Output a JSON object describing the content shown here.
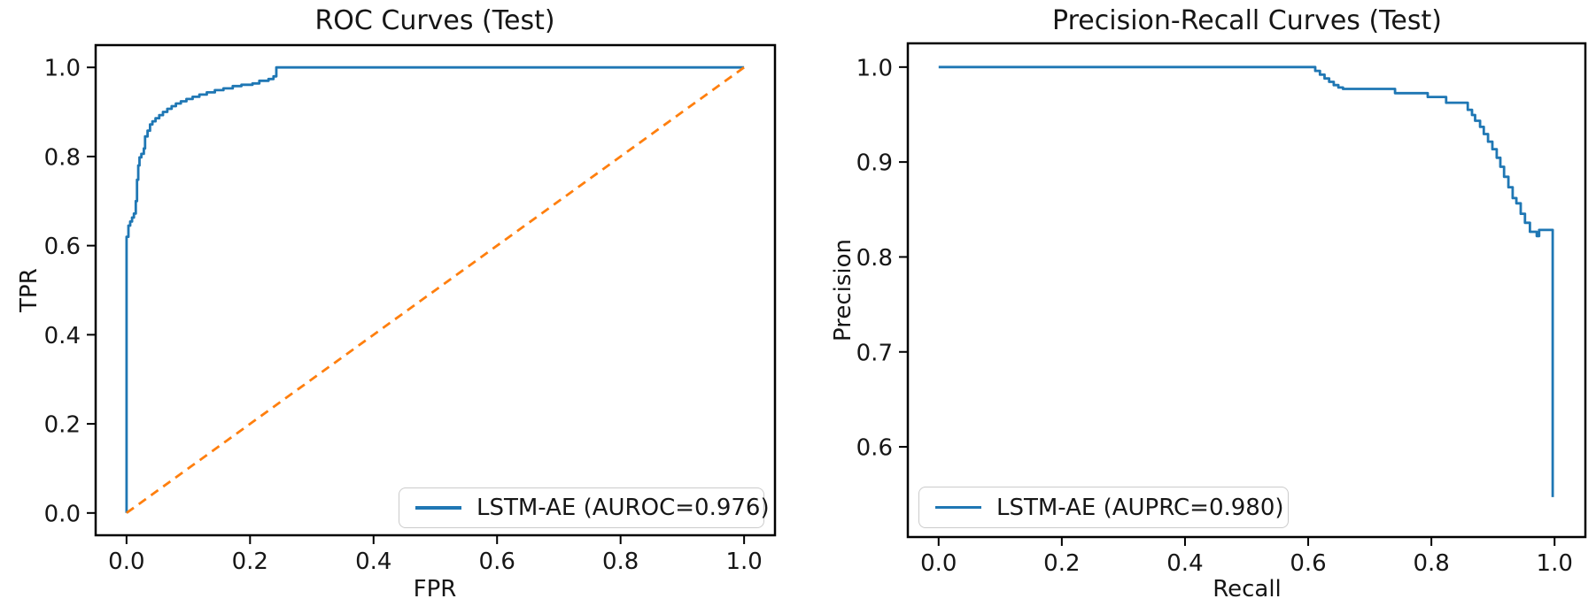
{
  "figure": {
    "background": "#ffffff",
    "text_color": "#161616",
    "spine_color": "#000000"
  },
  "chart_data": [
    {
      "type": "line",
      "title": "ROC Curves (Test)",
      "xlabel": "FPR",
      "ylabel": "TPR",
      "xlim": [
        -0.05,
        1.05
      ],
      "ylim": [
        -0.05,
        1.05
      ],
      "grid": false,
      "xticks": {
        "values": [
          0.0,
          0.2,
          0.4,
          0.6,
          0.8,
          1.0
        ],
        "labels": [
          "0.0",
          "0.2",
          "0.4",
          "0.6",
          "0.8",
          "1.0"
        ]
      },
      "yticks": {
        "values": [
          0.0,
          0.2,
          0.4,
          0.6,
          0.8,
          1.0
        ],
        "labels": [
          "0.0",
          "0.2",
          "0.4",
          "0.6",
          "0.8",
          "1.0"
        ]
      },
      "legend": {
        "position": "lower right",
        "entries": [
          {
            "label": "LSTM-AE (AUROC=0.976)",
            "color": "#1f77b4"
          }
        ]
      },
      "series": [
        {
          "name": "LSTM-AE",
          "metric": "AUROC",
          "metric_value": 0.976,
          "color": "#1f77b4",
          "line_style": "solid",
          "points": [
            [
              0,
              0
            ],
            [
              0,
              0.62
            ],
            [
              0.003,
              0.62
            ],
            [
              0.003,
              0.645
            ],
            [
              0.006,
              0.645
            ],
            [
              0.006,
              0.654
            ],
            [
              0.009,
              0.654
            ],
            [
              0.009,
              0.663
            ],
            [
              0.012,
              0.663
            ],
            [
              0.012,
              0.672
            ],
            [
              0.015,
              0.672
            ],
            [
              0.015,
              0.7
            ],
            [
              0.017,
              0.7
            ],
            [
              0.017,
              0.748
            ],
            [
              0.019,
              0.748
            ],
            [
              0.019,
              0.78
            ],
            [
              0.021,
              0.78
            ],
            [
              0.021,
              0.798
            ],
            [
              0.024,
              0.798
            ],
            [
              0.024,
              0.806
            ],
            [
              0.028,
              0.806
            ],
            [
              0.028,
              0.818
            ],
            [
              0.03,
              0.818
            ],
            [
              0.03,
              0.845
            ],
            [
              0.034,
              0.845
            ],
            [
              0.034,
              0.858
            ],
            [
              0.038,
              0.858
            ],
            [
              0.038,
              0.872
            ],
            [
              0.042,
              0.872
            ],
            [
              0.042,
              0.879
            ],
            [
              0.047,
              0.879
            ],
            [
              0.047,
              0.886
            ],
            [
              0.053,
              0.886
            ],
            [
              0.053,
              0.893
            ],
            [
              0.059,
              0.893
            ],
            [
              0.059,
              0.9
            ],
            [
              0.066,
              0.9
            ],
            [
              0.066,
              0.907
            ],
            [
              0.073,
              0.907
            ],
            [
              0.073,
              0.913
            ],
            [
              0.08,
              0.913
            ],
            [
              0.08,
              0.919
            ],
            [
              0.088,
              0.919
            ],
            [
              0.088,
              0.924
            ],
            [
              0.097,
              0.924
            ],
            [
              0.097,
              0.929
            ],
            [
              0.107,
              0.929
            ],
            [
              0.107,
              0.934
            ],
            [
              0.118,
              0.934
            ],
            [
              0.118,
              0.939
            ],
            [
              0.13,
              0.939
            ],
            [
              0.13,
              0.944
            ],
            [
              0.143,
              0.944
            ],
            [
              0.143,
              0.949
            ],
            [
              0.157,
              0.949
            ],
            [
              0.157,
              0.953
            ],
            [
              0.172,
              0.953
            ],
            [
              0.172,
              0.958
            ],
            [
              0.186,
              0.958
            ],
            [
              0.186,
              0.961
            ],
            [
              0.204,
              0.961
            ],
            [
              0.204,
              0.964
            ],
            [
              0.215,
              0.964
            ],
            [
              0.215,
              0.97
            ],
            [
              0.23,
              0.97
            ],
            [
              0.23,
              0.974
            ],
            [
              0.238,
              0.974
            ],
            [
              0.238,
              0.98
            ],
            [
              0.2425,
              0.98
            ],
            [
              0.2425,
              1.0
            ],
            [
              1.0,
              1.0
            ]
          ]
        },
        {
          "name": "chance-diagonal",
          "color": "#ff7f0e",
          "line_style": "dashed",
          "points": [
            [
              0,
              0
            ],
            [
              1,
              1
            ]
          ]
        }
      ]
    },
    {
      "type": "line",
      "title": "Precision-Recall Curves (Test)",
      "xlabel": "Recall",
      "ylabel": "Precision",
      "xlim": [
        -0.05,
        1.05
      ],
      "ylim": [
        0.505,
        1.025
      ],
      "grid": false,
      "xticks": {
        "values": [
          0.0,
          0.2,
          0.4,
          0.6,
          0.8,
          1.0
        ],
        "labels": [
          "0.0",
          "0.2",
          "0.4",
          "0.6",
          "0.8",
          "1.0"
        ]
      },
      "yticks": {
        "values": [
          0.6,
          0.7,
          0.8,
          0.9,
          1.0
        ],
        "labels": [
          "0.6",
          "0.7",
          "0.8",
          "0.9",
          "1.0"
        ]
      },
      "legend": {
        "position": "lower left",
        "entries": [
          {
            "label": "LSTM-AE (AUPRC=0.980)",
            "color": "#1f77b4"
          }
        ]
      },
      "series": [
        {
          "name": "LSTM-AE",
          "metric": "AUPRC",
          "metric_value": 0.98,
          "color": "#1f77b4",
          "line_style": "solid",
          "points": [
            [
              0,
              1.0
            ],
            [
              0.6115,
              1.0
            ],
            [
              0.6115,
              0.996
            ],
            [
              0.619,
              0.996
            ],
            [
              0.619,
              0.992
            ],
            [
              0.6265,
              0.992
            ],
            [
              0.6265,
              0.988
            ],
            [
              0.634,
              0.988
            ],
            [
              0.634,
              0.9845
            ],
            [
              0.6415,
              0.9845
            ],
            [
              0.6415,
              0.981
            ],
            [
              0.649,
              0.981
            ],
            [
              0.649,
              0.9785
            ],
            [
              0.6565,
              0.9785
            ],
            [
              0.6565,
              0.977
            ],
            [
              0.741,
              0.977
            ],
            [
              0.741,
              0.9725
            ],
            [
              0.794,
              0.9725
            ],
            [
              0.794,
              0.9685
            ],
            [
              0.824,
              0.9685
            ],
            [
              0.824,
              0.9625
            ],
            [
              0.859,
              0.9625
            ],
            [
              0.859,
              0.955
            ],
            [
              0.866,
              0.955
            ],
            [
              0.866,
              0.9495
            ],
            [
              0.871,
              0.9495
            ],
            [
              0.871,
              0.9435
            ],
            [
              0.879,
              0.9435
            ],
            [
              0.879,
              0.937
            ],
            [
              0.885,
              0.937
            ],
            [
              0.885,
              0.9295
            ],
            [
              0.892,
              0.9295
            ],
            [
              0.892,
              0.9215
            ],
            [
              0.899,
              0.9215
            ],
            [
              0.899,
              0.9135
            ],
            [
              0.906,
              0.9135
            ],
            [
              0.906,
              0.9045
            ],
            [
              0.912,
              0.9045
            ],
            [
              0.912,
              0.895
            ],
            [
              0.918,
              0.895
            ],
            [
              0.918,
              0.8845
            ],
            [
              0.925,
              0.8845
            ],
            [
              0.925,
              0.8735
            ],
            [
              0.932,
              0.8735
            ],
            [
              0.932,
              0.862
            ],
            [
              0.938,
              0.862
            ],
            [
              0.938,
              0.8565
            ],
            [
              0.945,
              0.8565
            ],
            [
              0.945,
              0.8455
            ],
            [
              0.952,
              0.8455
            ],
            [
              0.952,
              0.836
            ],
            [
              0.96,
              0.836
            ],
            [
              0.96,
              0.8265
            ],
            [
              0.971,
              0.8265
            ],
            [
              0.971,
              0.822
            ],
            [
              0.975,
              0.822
            ],
            [
              0.975,
              0.8285
            ],
            [
              0.997,
              0.8285
            ],
            [
              0.997,
              0.547
            ]
          ]
        }
      ]
    }
  ]
}
